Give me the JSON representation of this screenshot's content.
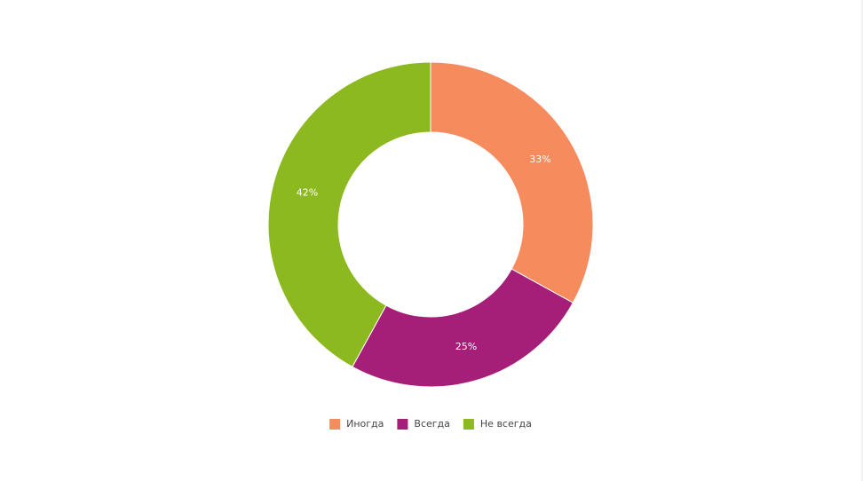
{
  "chart_data": {
    "type": "donut",
    "categories": [
      "Иногда",
      "Всегда",
      "Не всегда"
    ],
    "values": [
      33,
      25,
      42
    ],
    "value_labels": [
      "33%",
      "25%",
      "42%"
    ],
    "colors": [
      "#f68b5e",
      "#a51e77",
      "#8db920"
    ],
    "legend": "bottom"
  }
}
